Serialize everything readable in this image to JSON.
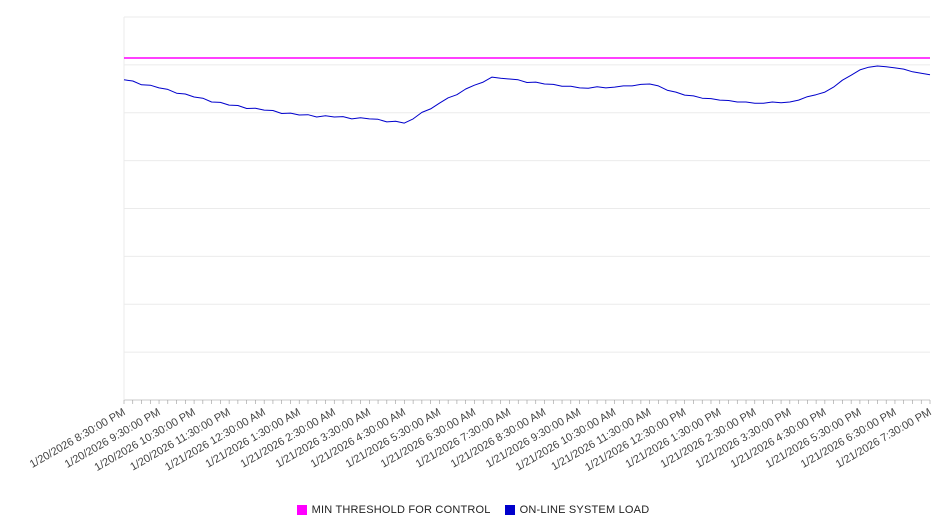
{
  "chart_data": {
    "type": "line",
    "title": "",
    "xlabel": "",
    "ylabel": "",
    "ylim": [
      0,
      100
    ],
    "grid_divisions": 8,
    "grid": true,
    "legend_position": "bottom",
    "x_labels": [
      "1/20/2026 8:30:00 PM",
      "1/20/2026 9:30:00 PM",
      "1/20/2026 10:30:00 PM",
      "1/20/2026 11:30:00 PM",
      "1/21/2026 12:30:00 AM",
      "1/21/2026 1:30:00 AM",
      "1/21/2026 2:30:00 AM",
      "1/21/2026 3:30:00 AM",
      "1/21/2026 4:30:00 AM",
      "1/21/2026 5:30:00 AM",
      "1/21/2026 6:30:00 AM",
      "1/21/2026 7:30:00 AM",
      "1/21/2026 8:30:00 AM",
      "1/21/2026 9:30:00 AM",
      "1/21/2026 10:30:00 AM",
      "1/21/2026 11:30:00 AM",
      "1/21/2026 12:30:00 PM",
      "1/21/2026 1:30:00 PM",
      "1/21/2026 2:30:00 PM",
      "1/21/2026 3:30:00 PM",
      "1/21/2026 4:30:00 PM",
      "1/21/2026 5:30:00 PM",
      "1/21/2026 6:30:00 PM",
      "1/21/2026 7:30:00 PM"
    ],
    "points_per_label_interval": 4,
    "series": [
      {
        "name": "MIN THRESHOLD FOR CONTROL",
        "type": "threshold",
        "color": "#ff00ff",
        "value": 89.3
      },
      {
        "name": "ON-LINE SYSTEM LOAD",
        "type": "line",
        "color": "#0000cc",
        "values": [
          83.6,
          83.3,
          82.3,
          82.2,
          81.5,
          81.1,
          80.1,
          79.9,
          79.1,
          78.8,
          77.8,
          77.7,
          77.0,
          76.9,
          76.1,
          76.2,
          75.7,
          75.6,
          74.8,
          74.9,
          74.4,
          74.5,
          73.9,
          74.2,
          73.9,
          74.0,
          73.4,
          73.7,
          73.4,
          73.3,
          72.6,
          72.8,
          72.3,
          73.4,
          75.1,
          76.0,
          77.5,
          78.9,
          79.7,
          81.2,
          82.2,
          83.0,
          84.3,
          84.0,
          83.8,
          83.6,
          82.9,
          83.0,
          82.5,
          82.4,
          81.9,
          81.9,
          81.5,
          81.4,
          81.8,
          81.5,
          81.7,
          82.0,
          82.0,
          82.4,
          82.5,
          82.0,
          80.9,
          80.4,
          79.6,
          79.4,
          78.8,
          78.7,
          78.3,
          78.2,
          77.8,
          77.8,
          77.5,
          77.5,
          77.8,
          77.6,
          77.8,
          78.3,
          79.2,
          79.7,
          80.4,
          81.7,
          83.5,
          84.8,
          86.2,
          86.9,
          87.2,
          87.0,
          86.7,
          86.4,
          85.7,
          85.3,
          84.9
        ]
      }
    ],
    "colors": {
      "gridline": "#ebebeb",
      "axis": "#c9c9c9",
      "tick": "#999999",
      "tick_label": "#444444"
    }
  },
  "legend": {
    "items": [
      {
        "label": "MIN THRESHOLD FOR CONTROL",
        "color": "#ff00ff"
      },
      {
        "label": "ON-LINE SYSTEM LOAD",
        "color": "#0000cc"
      }
    ]
  }
}
